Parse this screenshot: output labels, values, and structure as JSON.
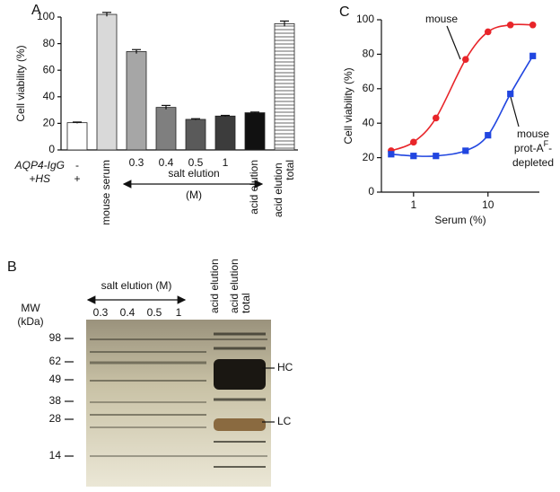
{
  "chart_data": [
    {
      "type": "bar",
      "panel": "A",
      "ylabel": "Cell viability (%)",
      "categories": [
        "-",
        "mouse serum",
        "0.3",
        "0.4",
        "0.5",
        "1",
        "acid elution",
        "acid elution total"
      ],
      "rotated": [
        false,
        true,
        false,
        false,
        false,
        false,
        true,
        true
      ],
      "values": [
        20.5,
        102,
        74,
        32,
        23,
        25.5,
        28,
        95
      ],
      "errors": [
        0.5,
        1.5,
        1.5,
        1.5,
        0.5,
        0.5,
        0.5,
        2
      ],
      "colors": [
        "#ffffff",
        "#d9d9d9",
        "#a6a6a6",
        "#7f7f7f",
        "#5a5a5a",
        "#3c3c3c",
        "#111111",
        "#ffffff"
      ],
      "hatched": [
        false,
        false,
        false,
        false,
        false,
        false,
        false,
        true
      ],
      "ylim": [
        0,
        100
      ],
      "yticks": [
        0,
        20,
        40,
        60,
        80,
        100
      ],
      "row_labels": [
        "AQP4-IgG",
        "+HS"
      ],
      "hs_sign": "+",
      "group_label": "salt elution",
      "group_unit": "(M)"
    },
    {
      "type": "scatter",
      "panel": "C",
      "xlabel": "Serum (%)",
      "ylabel": "Cell viability (%)",
      "xscale": "log",
      "xlim": [
        0.37,
        49
      ],
      "xticks": [
        1,
        10
      ],
      "ylim": [
        0,
        100
      ],
      "yticks": [
        0,
        20,
        40,
        60,
        80,
        100
      ],
      "series": [
        {
          "name": "mouse",
          "color": "#e8252a",
          "x": [
            0.5,
            1,
            2,
            5,
            10,
            20,
            40
          ],
          "values": [
            24,
            29,
            43,
            77,
            93,
            97,
            97
          ]
        },
        {
          "label_parts": [
            "mouse",
            "prot-A",
            "F",
            "-",
            "depleted"
          ],
          "color": "#2146e0",
          "x": [
            0.5,
            1,
            2,
            5,
            10,
            20,
            40
          ],
          "values": [
            22,
            21,
            21,
            24,
            33,
            57,
            79
          ]
        }
      ]
    }
  ],
  "gel": {
    "panel": "B",
    "group_label": "salt elution (M)",
    "mw": "MW",
    "unit": "(kDa)",
    "lanes": [
      "0.3",
      "0.4",
      "0.5",
      "1",
      "acid elution",
      "acid elution total"
    ],
    "markers": [
      "98",
      "62",
      "49",
      "38",
      "28",
      "14"
    ],
    "hc": "HC",
    "lc": "LC"
  }
}
